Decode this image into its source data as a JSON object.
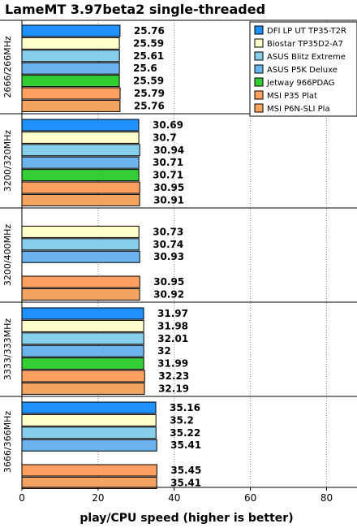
{
  "chart_data": {
    "type": "bar",
    "orientation": "horizontal",
    "title": "LameMT 3.97beta2 single-threaded",
    "xlabel": "play/CPU speed (higher is better)",
    "ylabel": "",
    "xlim": [
      0,
      88
    ],
    "xticks": [
      0,
      20,
      40,
      60,
      80
    ],
    "grid": true,
    "legend_position": "top-right",
    "groups": [
      "2666/266MHz",
      "3200/320MHz",
      "3200/400MHz",
      "3333/333MHz",
      "3666/366MHz"
    ],
    "series": [
      {
        "name": "DFI LP UT TP35-T2R",
        "color": "#1e90ff",
        "values": [
          25.76,
          30.69,
          null,
          31.97,
          35.16
        ]
      },
      {
        "name": "Biostar TP35D2-A7",
        "color": "#ffffcc",
        "values": [
          25.59,
          30.7,
          30.73,
          31.98,
          35.2
        ]
      },
      {
        "name": "ASUS Blitz Extreme",
        "color": "#87ceeb",
        "values": [
          25.61,
          30.94,
          30.74,
          32.01,
          35.22
        ]
      },
      {
        "name": "ASUS P5K Deluxe",
        "color": "#6cb4ee",
        "values": [
          25.6,
          30.71,
          30.93,
          32,
          35.41
        ]
      },
      {
        "name": "Jetway 966PDAG",
        "color": "#33cc33",
        "values": [
          25.59,
          30.71,
          null,
          31.99,
          null
        ]
      },
      {
        "name": "MSI P35 Plat",
        "color": "#ffa060",
        "values": [
          25.79,
          30.95,
          30.95,
          32.23,
          35.45
        ]
      },
      {
        "name": "MSI P6N-SLI Pla",
        "color": "#f4a460",
        "values": [
          25.76,
          30.91,
          30.92,
          32.19,
          35.41
        ]
      }
    ]
  }
}
